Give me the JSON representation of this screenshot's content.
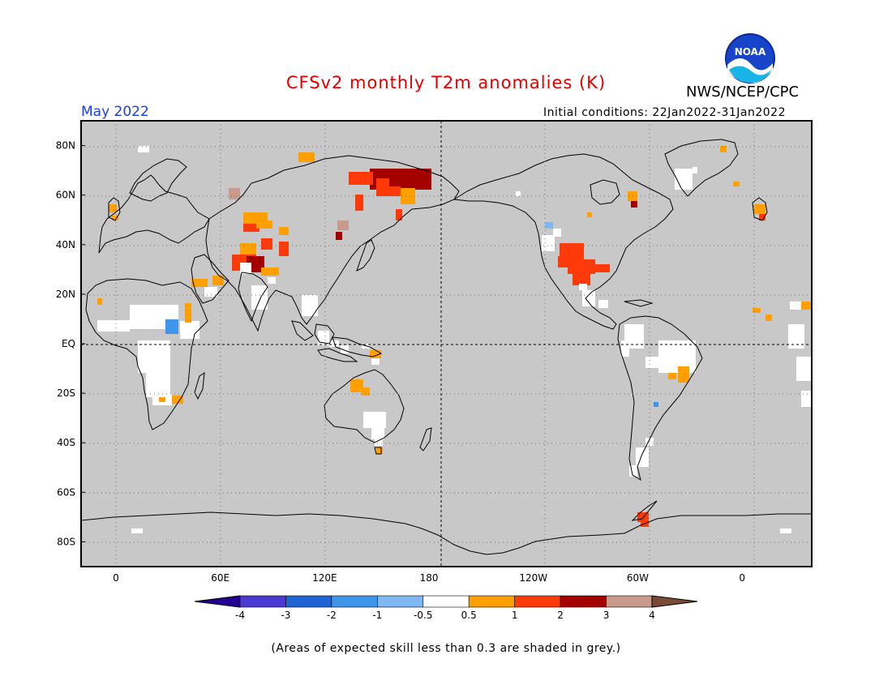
{
  "header": {
    "title": "CFSv2 monthly T2m anomalies (K)",
    "title_color": "#e00000",
    "month": "May 2022",
    "month_color": "#1a3fe0",
    "org": "NWS/NCEP/CPC",
    "initial_conditions": "Initial conditions: 22Jan2022-31Jan2022",
    "logo_text": "NOAA"
  },
  "axes": {
    "lat_labels": [
      {
        "lat": 80,
        "label": "80N"
      },
      {
        "lat": 60,
        "label": "60N"
      },
      {
        "lat": 40,
        "label": "40N"
      },
      {
        "lat": 20,
        "label": "20N"
      },
      {
        "lat": 0,
        "label": "EQ"
      },
      {
        "lat": -20,
        "label": "20S"
      },
      {
        "lat": -40,
        "label": "40S"
      },
      {
        "lat": -60,
        "label": "60S"
      },
      {
        "lat": -80,
        "label": "80S"
      }
    ],
    "lon_labels": [
      {
        "lon": 0,
        "label": "0"
      },
      {
        "lon": 60,
        "label": "60E"
      },
      {
        "lon": 120,
        "label": "120E"
      },
      {
        "lon": 180,
        "label": "180"
      },
      {
        "lon": 240,
        "label": "120W"
      },
      {
        "lon": 300,
        "label": "60W"
      },
      {
        "lon": 360,
        "label": "0"
      }
    ],
    "lon_range": [
      -20,
      400
    ],
    "lat_range": [
      -90,
      90
    ]
  },
  "colorbar": {
    "labels": [
      "-4",
      "-3",
      "-2",
      "-1",
      "-0.5",
      "0.5",
      "1",
      "2",
      "3",
      "4"
    ],
    "colors": [
      "#240092",
      "#4a3ad0",
      "#1f64d2",
      "#3f95ea",
      "#7fb8f0",
      "#ffffff",
      "#ff9f00",
      "#ff3a0a",
      "#a50000",
      "#c89b8c",
      "#7a4a38"
    ]
  },
  "colors": {
    "mask_grey": "#c8c8c8",
    "orange": "#ff9f00",
    "red": "#ff3a0a",
    "darkred": "#a50000",
    "tan": "#c89b8c",
    "lightblue": "#7fb8f0",
    "blue": "#3f95ea"
  },
  "footnote": "(Areas of expected skill less than 0.3 are shaded in grey.)"
}
